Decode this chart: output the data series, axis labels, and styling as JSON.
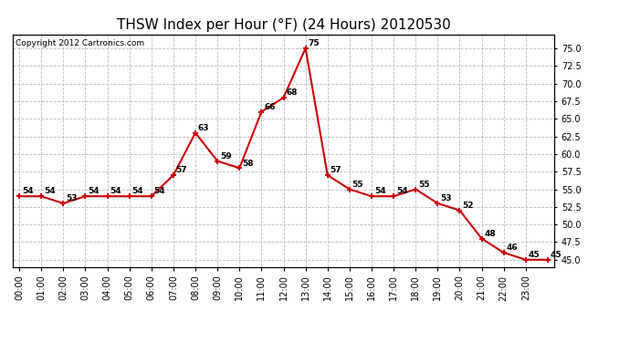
{
  "title": "THSW Index per Hour (°F) (24 Hours) 20120530",
  "copyright": "Copyright 2012 Cartronics.com",
  "values": [
    54,
    54,
    53,
    54,
    54,
    54,
    54,
    57,
    63,
    59,
    58,
    66,
    68,
    75,
    57,
    55,
    54,
    54,
    55,
    53,
    52,
    48,
    46,
    45,
    45
  ],
  "xlabels": [
    "00:00",
    "01:00",
    "02:00",
    "03:00",
    "04:00",
    "05:00",
    "06:00",
    "07:00",
    "08:00",
    "09:00",
    "10:00",
    "11:00",
    "12:00",
    "13:00",
    "14:00",
    "15:00",
    "16:00",
    "17:00",
    "18:00",
    "19:00",
    "20:00",
    "21:00",
    "22:00",
    "23:00"
  ],
  "line_color": "#cc0000",
  "marker_color": "#cc0000",
  "bg_color": "#ffffff",
  "plot_bg_color": "#ffffff",
  "grid_color": "#bbbbbb",
  "ylim": [
    44.0,
    77.0
  ],
  "yticks": [
    45.0,
    47.5,
    50.0,
    52.5,
    55.0,
    57.5,
    60.0,
    62.5,
    65.0,
    67.5,
    70.0,
    72.5,
    75.0
  ],
  "title_fontsize": 11,
  "copyright_fontsize": 6.5,
  "label_fontsize": 6.5,
  "tick_fontsize": 7
}
